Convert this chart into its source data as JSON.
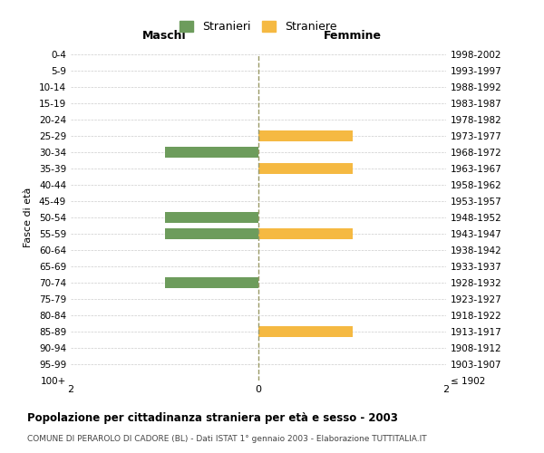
{
  "age_groups": [
    "100+",
    "95-99",
    "90-94",
    "85-89",
    "80-84",
    "75-79",
    "70-74",
    "65-69",
    "60-64",
    "55-59",
    "50-54",
    "45-49",
    "40-44",
    "35-39",
    "30-34",
    "25-29",
    "20-24",
    "15-19",
    "10-14",
    "5-9",
    "0-4"
  ],
  "birth_years": [
    "≤ 1902",
    "1903-1907",
    "1908-1912",
    "1913-1917",
    "1918-1922",
    "1923-1927",
    "1928-1932",
    "1933-1937",
    "1938-1942",
    "1943-1947",
    "1948-1952",
    "1953-1957",
    "1958-1962",
    "1963-1967",
    "1968-1972",
    "1973-1977",
    "1978-1982",
    "1983-1987",
    "1988-1992",
    "1993-1997",
    "1998-2002"
  ],
  "maschi": [
    0,
    0,
    0,
    0,
    0,
    0,
    -1,
    0,
    0,
    -1,
    -1,
    0,
    0,
    0,
    -1,
    0,
    0,
    0,
    0,
    0,
    0
  ],
  "femmine": [
    0,
    0,
    0,
    1,
    0,
    0,
    0,
    0,
    0,
    1,
    0,
    0,
    0,
    1,
    0,
    1,
    0,
    0,
    0,
    0,
    0
  ],
  "male_color": "#6d9c5c",
  "female_color": "#f5b942",
  "title": "Popolazione per cittadinanza straniera per età e sesso - 2003",
  "subtitle": "COMUNE DI PERAROLO DI CADORE (BL) - Dati ISTAT 1° gennaio 2003 - Elaborazione TUTTITALIA.IT",
  "xlabel_left": "Maschi",
  "xlabel_right": "Femmine",
  "ylabel_left": "Fasce di età",
  "legend_male": "Stranieri",
  "legend_female": "Straniere",
  "xlim": [
    -2,
    2
  ],
  "xticks": [
    -2,
    0,
    2
  ],
  "background_color": "#ffffff",
  "grid_color": "#cccccc",
  "bar_height": 0.7
}
